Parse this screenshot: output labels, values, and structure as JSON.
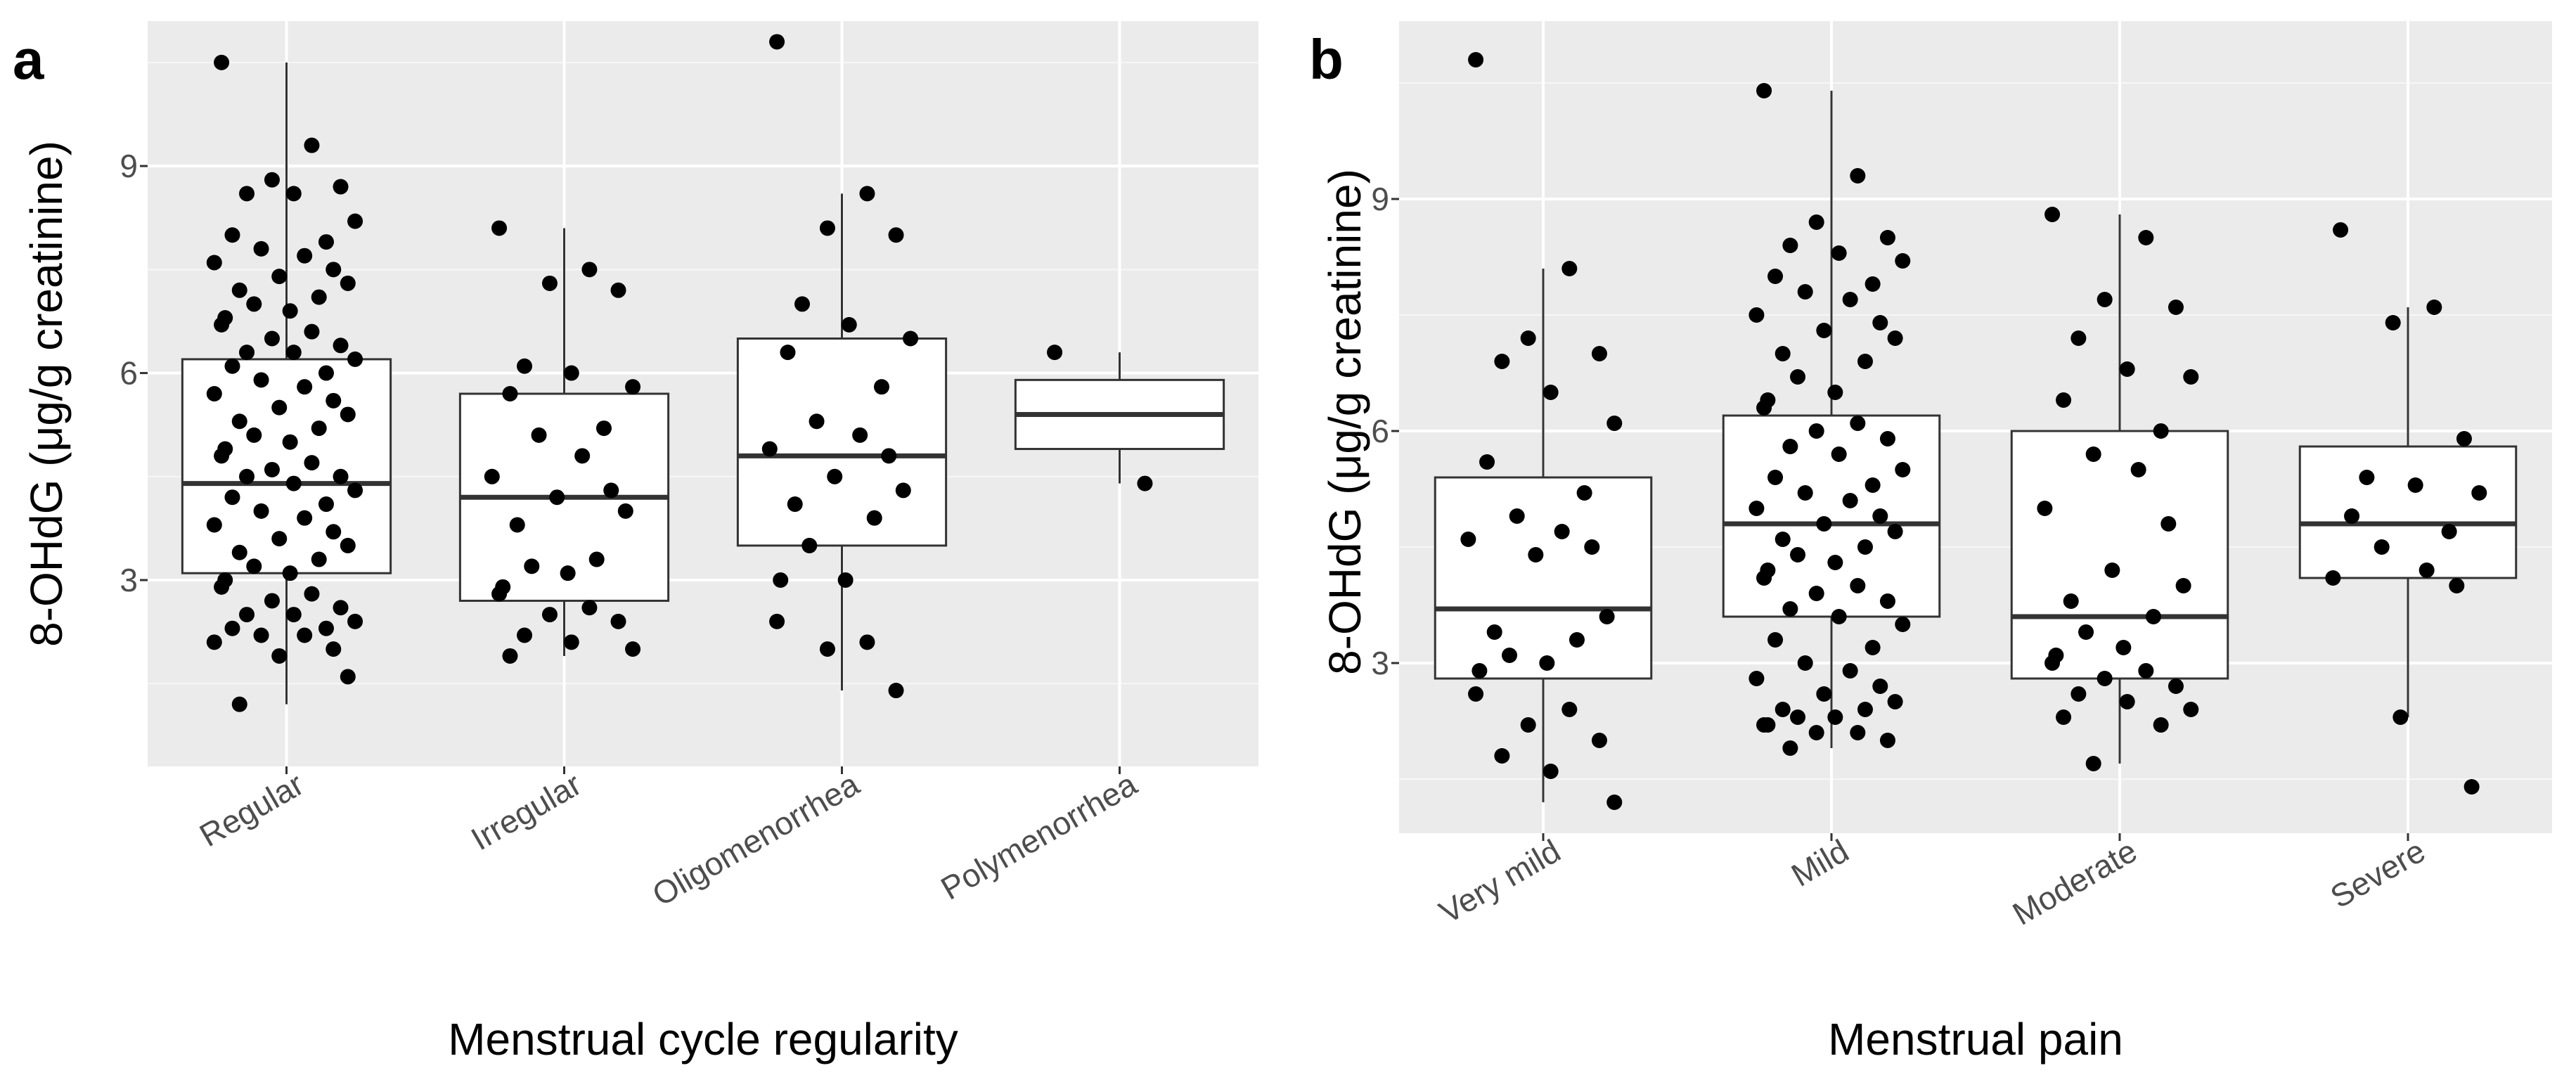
{
  "chart_data": [
    {
      "panel": "a",
      "type": "box",
      "xlabel": "Menstrual cycle regularity",
      "ylabel": "8-OHdG (μg/g creatinine)",
      "ylim": [
        0.3,
        11.1
      ],
      "yticks": [
        3,
        6,
        9
      ],
      "categories": [
        "Regular",
        "Irregular",
        "Oligomenorrhea",
        "Polymenorrhea"
      ],
      "boxes": [
        {
          "q1": 3.1,
          "median": 4.4,
          "q3": 6.2,
          "whisker_low": 1.2,
          "whisker_high": 10.5
        },
        {
          "q1": 2.7,
          "median": 4.2,
          "q3": 5.7,
          "whisker_low": 1.9,
          "whisker_high": 8.1
        },
        {
          "q1": 3.5,
          "median": 4.8,
          "q3": 6.5,
          "whisker_low": 1.4,
          "whisker_high": 8.6
        },
        {
          "q1": 4.9,
          "median": 5.4,
          "q3": 5.9,
          "whisker_low": 4.4,
          "whisker_high": 6.3
        }
      ],
      "points": [
        {
          "cat": 0,
          "y": [
            10.5,
            9.3,
            8.8,
            8.7,
            8.6,
            8.6,
            8.2,
            8.0,
            7.9,
            7.8,
            7.7,
            7.6,
            7.5,
            7.4,
            7.3,
            7.2,
            7.1,
            7.0,
            6.9,
            6.8,
            6.7,
            6.6,
            6.5,
            6.4,
            6.3,
            6.3,
            6.2,
            6.1,
            6.0,
            5.9,
            5.8,
            5.7,
            5.6,
            5.5,
            5.4,
            5.3,
            5.2,
            5.1,
            5.0,
            4.9,
            4.8,
            4.7,
            4.6,
            4.5,
            4.5,
            4.4,
            4.3,
            4.2,
            4.1,
            4.0,
            3.9,
            3.8,
            3.7,
            3.6,
            3.5,
            3.4,
            3.3,
            3.2,
            3.1,
            3.0,
            2.9,
            2.8,
            2.7,
            2.6,
            2.5,
            2.5,
            2.4,
            2.3,
            2.3,
            2.2,
            2.2,
            2.1,
            2.0,
            1.9,
            1.6,
            1.2
          ]
        },
        {
          "cat": 1,
          "y": [
            8.1,
            7.5,
            7.3,
            7.2,
            6.1,
            6.0,
            5.8,
            5.7,
            5.2,
            5.1,
            4.8,
            4.5,
            4.3,
            4.2,
            4.0,
            3.8,
            3.3,
            3.2,
            3.1,
            2.9,
            2.8,
            2.6,
            2.5,
            2.4,
            2.2,
            2.1,
            2.0,
            1.9
          ]
        },
        {
          "cat": 2,
          "y": [
            10.8,
            8.6,
            8.1,
            8.0,
            7.0,
            6.7,
            6.5,
            6.3,
            5.8,
            5.3,
            5.1,
            4.9,
            4.8,
            4.5,
            4.3,
            4.1,
            3.9,
            3.5,
            3.0,
            3.0,
            2.4,
            2.1,
            2.0,
            1.4
          ]
        },
        {
          "cat": 3,
          "y": [
            6.3,
            4.4
          ]
        }
      ]
    },
    {
      "panel": "b",
      "type": "box",
      "xlabel": "Menstrual pain",
      "ylabel": "8-OHdG (μg/g creatinine)",
      "ylim": [
        0.8,
        11.3
      ],
      "yticks": [
        3,
        6,
        9
      ],
      "categories": [
        "Very mild",
        "Mild",
        "Moderate",
        "Severe"
      ],
      "boxes": [
        {
          "q1": 2.8,
          "median": 3.7,
          "q3": 5.4,
          "whisker_low": 1.2,
          "whisker_high": 8.1
        },
        {
          "q1": 3.6,
          "median": 4.8,
          "q3": 6.2,
          "whisker_low": 1.9,
          "whisker_high": 10.4
        },
        {
          "q1": 2.8,
          "median": 3.6,
          "q3": 6.0,
          "whisker_low": 1.7,
          "whisker_high": 8.8
        },
        {
          "q1": 4.1,
          "median": 4.8,
          "q3": 5.8,
          "whisker_low": 2.3,
          "whisker_high": 7.6
        }
      ],
      "points": [
        {
          "cat": 0,
          "y": [
            10.8,
            8.1,
            7.2,
            7.0,
            6.9,
            6.5,
            6.1,
            5.6,
            5.2,
            4.9,
            4.7,
            4.6,
            4.5,
            4.4,
            3.6,
            3.4,
            3.3,
            3.1,
            3.0,
            2.9,
            2.6,
            2.4,
            2.2,
            2.0,
            1.8,
            1.6,
            1.2
          ]
        },
        {
          "cat": 1,
          "y": [
            10.4,
            9.3,
            8.7,
            8.5,
            8.4,
            8.3,
            8.2,
            8.0,
            7.9,
            7.8,
            7.7,
            7.5,
            7.4,
            7.3,
            7.2,
            7.0,
            6.9,
            6.7,
            6.5,
            6.4,
            6.3,
            6.1,
            6.0,
            5.9,
            5.8,
            5.7,
            5.5,
            5.4,
            5.3,
            5.2,
            5.1,
            5.0,
            4.9,
            4.8,
            4.7,
            4.6,
            4.5,
            4.4,
            4.3,
            4.2,
            4.1,
            4.0,
            3.9,
            3.8,
            3.7,
            3.6,
            3.5,
            3.3,
            3.2,
            3.0,
            2.9,
            2.8,
            2.7,
            2.6,
            2.5,
            2.4,
            2.4,
            2.3,
            2.3,
            2.2,
            2.2,
            2.1,
            2.1,
            2.0,
            1.9
          ]
        },
        {
          "cat": 2,
          "y": [
            8.8,
            8.5,
            7.7,
            7.6,
            7.2,
            6.8,
            6.7,
            6.4,
            6.0,
            5.7,
            5.5,
            5.0,
            4.8,
            4.2,
            4.0,
            3.8,
            3.6,
            3.4,
            3.2,
            3.1,
            3.0,
            2.9,
            2.8,
            2.7,
            2.6,
            2.5,
            2.4,
            2.3,
            2.2,
            1.7
          ]
        },
        {
          "cat": 3,
          "y": [
            8.6,
            7.6,
            7.4,
            5.9,
            5.4,
            5.3,
            5.2,
            4.9,
            4.7,
            4.5,
            4.2,
            4.1,
            4.0,
            2.3,
            1.4
          ]
        }
      ]
    }
  ]
}
